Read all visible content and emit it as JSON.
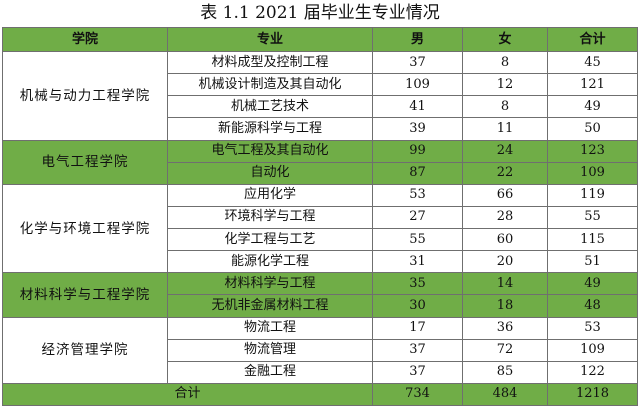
{
  "title": "表 1.1 2021 届毕业生专业情况",
  "headers": [
    "学院",
    "专业",
    "男",
    "女",
    "合计"
  ],
  "colors": {
    "header": "#70ad47",
    "highlight": "#70ad47",
    "border": "#6f6f6f"
  },
  "colleges": [
    {
      "name": "机械与动力工程学院",
      "highlight": false,
      "majors": [
        {
          "major": "材料成型及控制工程",
          "male": "37",
          "female": "8",
          "total": "45"
        },
        {
          "major": "机械设计制造及其自动化",
          "male": "109",
          "female": "12",
          "total": "121"
        },
        {
          "major": "机械工艺技术",
          "male": "41",
          "female": "8",
          "total": "49"
        },
        {
          "major": "新能源科学与工程",
          "male": "39",
          "female": "11",
          "total": "50"
        }
      ]
    },
    {
      "name": "电气工程学院",
      "highlight": true,
      "majors": [
        {
          "major": "电气工程及其自动化",
          "male": "99",
          "female": "24",
          "total": "123"
        },
        {
          "major": "自动化",
          "male": "87",
          "female": "22",
          "total": "109"
        }
      ]
    },
    {
      "name": "化学与环境工程学院",
      "highlight": false,
      "majors": [
        {
          "major": "应用化学",
          "male": "53",
          "female": "66",
          "total": "119"
        },
        {
          "major": "环境科学与工程",
          "male": "27",
          "female": "28",
          "total": "55"
        },
        {
          "major": "化学工程与工艺",
          "male": "55",
          "female": "60",
          "total": "115"
        },
        {
          "major": "能源化学工程",
          "male": "31",
          "female": "20",
          "total": "51"
        }
      ]
    },
    {
      "name": "材料科学与工程学院",
      "highlight": true,
      "majors": [
        {
          "major": "材料科学与工程",
          "male": "35",
          "female": "14",
          "total": "49"
        },
        {
          "major": "无机非金属材料工程",
          "male": "30",
          "female": "18",
          "total": "48"
        }
      ]
    },
    {
      "name": "经济管理学院",
      "highlight": false,
      "majors": [
        {
          "major": "物流工程",
          "male": "17",
          "female": "36",
          "total": "53"
        },
        {
          "major": "物流管理",
          "male": "37",
          "female": "72",
          "total": "109"
        },
        {
          "major": "金融工程",
          "male": "37",
          "female": "85",
          "total": "122"
        }
      ]
    }
  ],
  "total_row": {
    "label": "合计",
    "male": "734",
    "female": "484",
    "total": "1218"
  }
}
